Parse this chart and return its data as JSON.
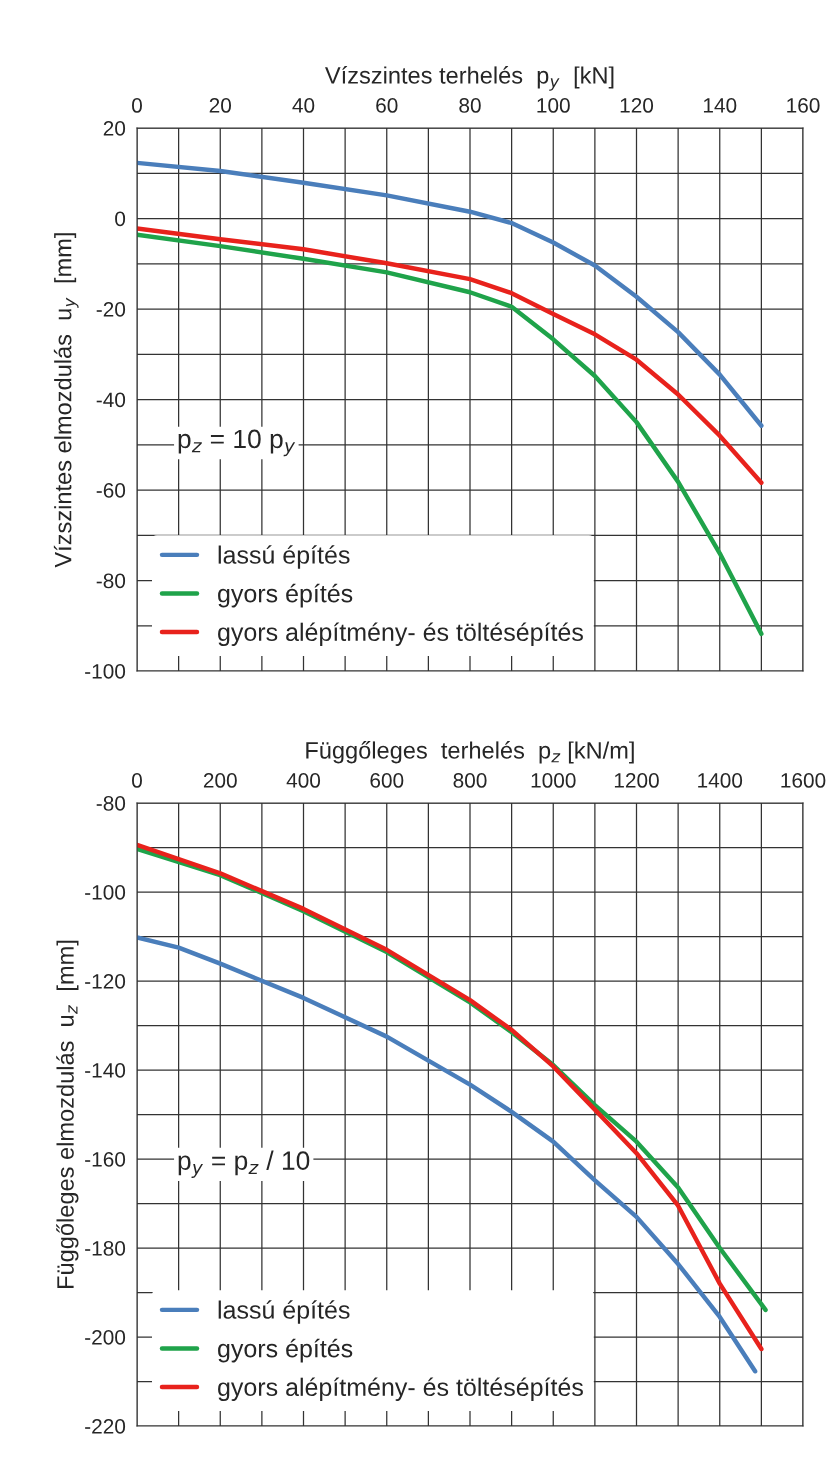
{
  "chart_data": [
    {
      "type": "line",
      "xlabel": "Vízszintes terhelés  p$_{y}$  [kN]",
      "ylabel": "Vízszintes elmozdulás  u$_{y}$  [mm]",
      "xlim": [
        0,
        160
      ],
      "xticks": [
        0,
        20,
        40,
        60,
        80,
        100,
        120,
        140,
        160
      ],
      "ylim": [
        -100,
        20
      ],
      "yticks": [
        -100,
        -80,
        -60,
        -40,
        -20,
        0,
        20
      ],
      "grid": true,
      "legend": "bottom left",
      "line_style": "solid",
      "marker": "none",
      "annotations": [
        "p$_{z}$ = 10 p$_{y}$"
      ],
      "series": [
        {
          "name": "lassú építés",
          "color": "#4a7ebb",
          "x": [
            0,
            20,
            40,
            60,
            80,
            90,
            100,
            110,
            120,
            130,
            140,
            150
          ],
          "values": [
            12.3,
            10.5,
            7.9,
            5.1,
            1.5,
            -1,
            -5.3,
            -10.4,
            -17.3,
            -25.1,
            -34.5,
            -45.8
          ]
        },
        {
          "name": "gyors építés",
          "color": "#1fa34a",
          "x": [
            0,
            20,
            40,
            60,
            80,
            90,
            100,
            110,
            120,
            130,
            140,
            150
          ],
          "values": [
            -3.6,
            -6.1,
            -8.9,
            -11.9,
            -16.3,
            -19.5,
            -26.7,
            -34.8,
            -45,
            -58.2,
            -74,
            -91.8
          ]
        },
        {
          "name": "gyors alépítmény- és töltésépítés",
          "color": "#e8221c",
          "x": [
            0,
            20,
            40,
            60,
            80,
            90,
            100,
            110,
            120,
            130,
            140,
            150
          ],
          "values": [
            -2.2,
            -4.6,
            -6.8,
            -9.9,
            -13.4,
            -16.5,
            -21.1,
            -25.6,
            -31.2,
            -38.9,
            -48,
            -58.4
          ]
        }
      ]
    },
    {
      "type": "line",
      "xlabel": "Függőleges  terhelés  p$_{z}$ [kN/m]",
      "ylabel": "Függőleges elmozdulás  u$_{z}$  [mm]",
      "xlim": [
        0,
        1600
      ],
      "xticks": [
        0,
        200,
        400,
        600,
        800,
        1000,
        1200,
        1400,
        1600
      ],
      "ylim": [
        -220,
        -80
      ],
      "yticks": [
        -220,
        -200,
        -180,
        -160,
        -140,
        -120,
        -100,
        -80
      ],
      "grid": true,
      "legend": "bottom left",
      "line_style": "solid",
      "marker": "none",
      "annotations": [
        "p$_{y}$ = p$_{z}$ / 10"
      ],
      "series": [
        {
          "name": "lassú építés",
          "color": "#4a7ebb",
          "x": [
            0,
            100,
            200,
            400,
            600,
            800,
            900,
            1000,
            1100,
            1200,
            1300,
            1400,
            1485
          ],
          "values": [
            -110.2,
            -112.5,
            -116.1,
            -123.8,
            -132.5,
            -143.3,
            -149.4,
            -156.1,
            -164.8,
            -173,
            -183.6,
            -195.5,
            -207.7
          ]
        },
        {
          "name": "gyors építés",
          "color": "#1fa34a",
          "x": [
            0,
            200,
            400,
            600,
            800,
            900,
            1000,
            1100,
            1200,
            1300,
            1400,
            1510
          ],
          "values": [
            -90.3,
            -96.2,
            -104.3,
            -113.5,
            -124.8,
            -131.5,
            -138.9,
            -147.9,
            -156.1,
            -166.4,
            -180,
            -193.9
          ]
        },
        {
          "name": "gyors alépítmény- és töltésépítés",
          "color": "#e8221c",
          "x": [
            0,
            200,
            400,
            600,
            800,
            900,
            1000,
            1100,
            1200,
            1300,
            1400,
            1500
          ],
          "values": [
            -89.4,
            -95.8,
            -103.8,
            -113,
            -124.3,
            -131,
            -139.2,
            -148.9,
            -158.7,
            -170.5,
            -188,
            -202.7
          ]
        }
      ]
    }
  ]
}
